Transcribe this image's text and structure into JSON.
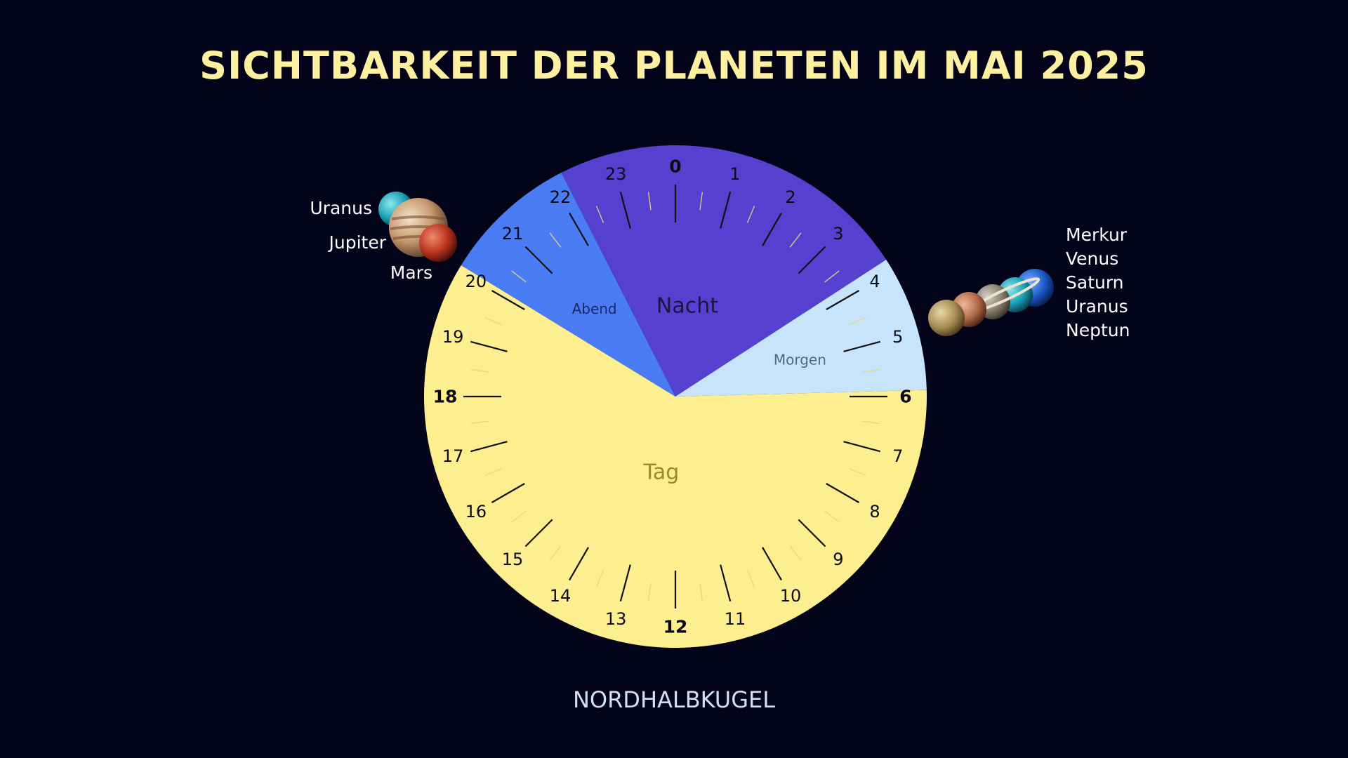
{
  "title": "SICHTBARKEIT DER PLANETEN IM MAI 2025",
  "subtitle": "NORDHALBKUGEL",
  "hours": [
    "0",
    "1",
    "2",
    "3",
    "4",
    "5",
    "6",
    "7",
    "8",
    "9",
    "10",
    "11",
    "12",
    "13",
    "14",
    "15",
    "16",
    "17",
    "18",
    "19",
    "20",
    "21",
    "22",
    "23"
  ],
  "segments": [
    {
      "name": "Nacht",
      "start_hour": 22.2,
      "end_hour": 3.8,
      "color": "#5540d0",
      "label_color": "#1a1640"
    },
    {
      "name": "Morgen",
      "start_hour": 3.8,
      "end_hour": 5.9,
      "color": "#c8e4fb",
      "label_color": "#4a6a88"
    },
    {
      "name": "Tag",
      "start_hour": 5.9,
      "end_hour": 20.1,
      "color": "#fdef8f",
      "label_color": "#9a8a2a"
    },
    {
      "name": "Abend",
      "start_hour": 20.1,
      "end_hour": 22.2,
      "color": "#4a7cf5",
      "label_color": "#152a6a"
    }
  ],
  "evening_planets": [
    "Uranus",
    "Jupiter",
    "Mars"
  ],
  "morning_planets": [
    "Merkur",
    "Venus",
    "Saturn",
    "Uranus",
    "Neptun"
  ],
  "planet_icons": {
    "evening": [
      "uranus-icon",
      "jupiter-icon",
      "mars-icon"
    ],
    "morning": [
      "merkur-icon",
      "venus-icon",
      "saturn-icon",
      "uranus-icon",
      "neptun-icon"
    ]
  }
}
